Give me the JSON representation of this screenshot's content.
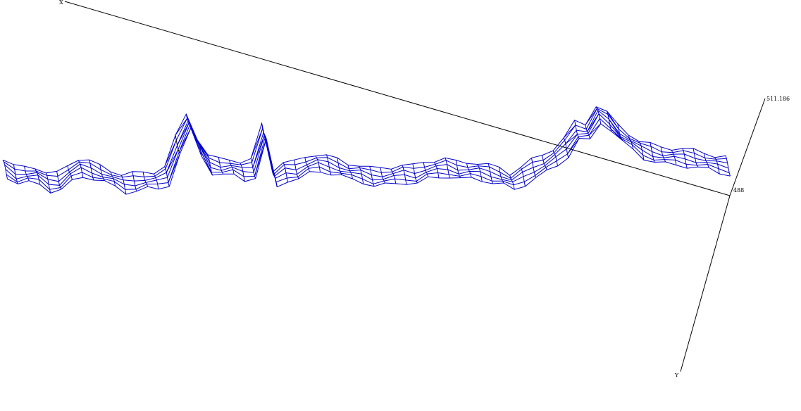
{
  "chart_data": {
    "type": "surface-wireframe",
    "axes": {
      "x": {
        "label": "X"
      },
      "y": {
        "label": "Y"
      },
      "z": {
        "tick_labels": [
          "511.186",
          "488"
        ],
        "range": [
          488,
          511.186
        ]
      }
    },
    "profile": [
      6,
      5,
      6,
      6,
      4,
      4,
      6,
      7,
      6,
      5,
      4,
      3,
      4,
      5,
      5,
      6,
      14,
      20,
      12,
      6,
      5,
      5,
      4,
      5,
      16,
      3,
      5,
      5,
      6,
      6,
      5,
      4,
      3,
      3,
      3,
      4,
      5,
      6,
      6,
      7,
      7,
      7,
      6,
      6,
      6,
      6,
      6,
      5,
      7,
      9,
      10,
      11,
      13,
      17,
      16,
      21,
      19,
      16,
      14,
      12,
      11,
      10,
      9,
      8,
      7,
      6,
      5,
      5
    ],
    "grid": {
      "along": 68,
      "across": 6
    },
    "mesh_color": "#0000CC",
    "accent_color": "#000000"
  }
}
